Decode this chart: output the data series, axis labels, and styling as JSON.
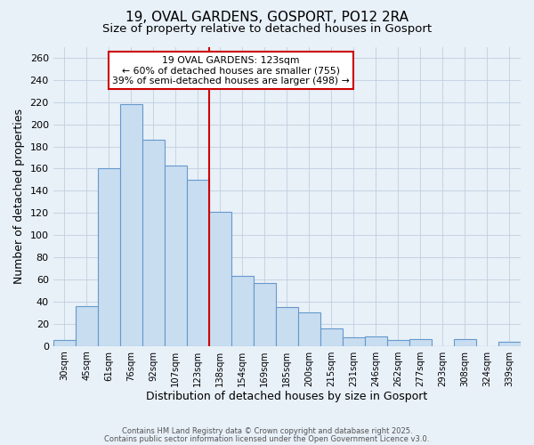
{
  "title": "19, OVAL GARDENS, GOSPORT, PO12 2RA",
  "subtitle": "Size of property relative to detached houses in Gosport",
  "xlabel": "Distribution of detached houses by size in Gosport",
  "ylabel": "Number of detached properties",
  "bar_color": "#c8ddf0",
  "bar_edge_color": "#6699cc",
  "categories": [
    "30sqm",
    "45sqm",
    "61sqm",
    "76sqm",
    "92sqm",
    "107sqm",
    "123sqm",
    "138sqm",
    "154sqm",
    "169sqm",
    "185sqm",
    "200sqm",
    "215sqm",
    "231sqm",
    "246sqm",
    "262sqm",
    "277sqm",
    "293sqm",
    "308sqm",
    "324sqm",
    "339sqm"
  ],
  "values": [
    5,
    36,
    160,
    218,
    186,
    163,
    150,
    121,
    63,
    57,
    35,
    30,
    16,
    8,
    9,
    5,
    6,
    0,
    6,
    0,
    4
  ],
  "vline_x": 6.5,
  "vline_color": "#cc0000",
  "annotation_line1": "19 OVAL GARDENS: 123sqm",
  "annotation_line2": "← 60% of detached houses are smaller (755)",
  "annotation_line3": "39% of semi-detached houses are larger (498) →",
  "annotation_box_color": "#ffffff",
  "annotation_box_edge": "#cc0000",
  "ylim": [
    0,
    270
  ],
  "yticks": [
    0,
    20,
    40,
    60,
    80,
    100,
    120,
    140,
    160,
    180,
    200,
    220,
    240,
    260
  ],
  "footer1": "Contains HM Land Registry data © Crown copyright and database right 2025.",
  "footer2": "Contains public sector information licensed under the Open Government Licence v3.0.",
  "background_color": "#e8f0f8",
  "grid_color": "#c0cfe0",
  "title_fontsize": 11,
  "subtitle_fontsize": 9.5
}
